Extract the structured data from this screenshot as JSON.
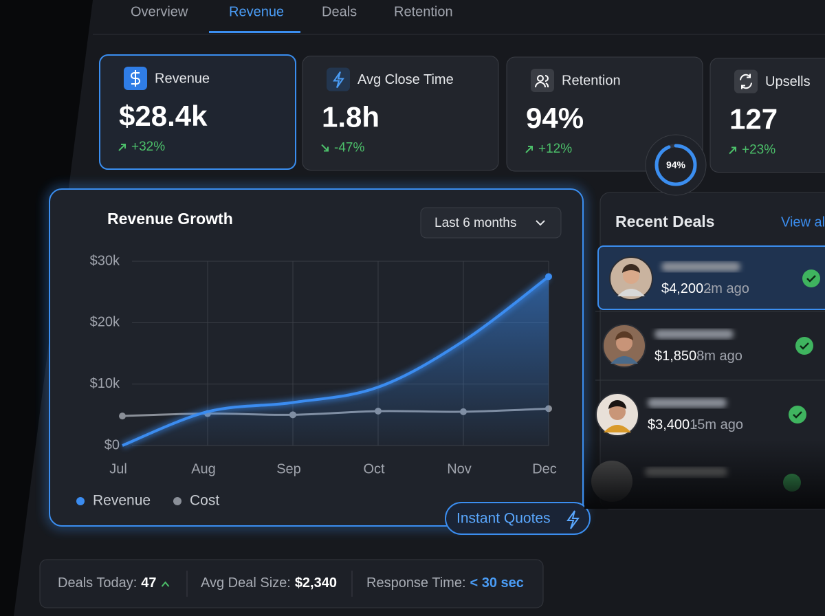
{
  "tabs": [
    "Overview",
    "Revenue",
    "Deals",
    "Retention"
  ],
  "kpis": [
    {
      "label": "Revenue",
      "value": "$28.4k",
      "change": "+32%"
    },
    {
      "label": "Avg Close Time",
      "value": "1.8h",
      "change": "-47%"
    },
    {
      "label": "Retention",
      "value": "94%",
      "change": "+12%",
      "ring": {
        "value": 94,
        "label": "94%"
      }
    },
    {
      "label": "Upsells",
      "value": "127",
      "change": "+23%"
    }
  ],
  "chart_data": {
    "type": "line",
    "title": "Revenue Growth",
    "period": "Last 6 months",
    "categories": [
      "Jul",
      "Aug",
      "Sep",
      "Oct",
      "Nov",
      "Dec"
    ],
    "series": [
      {
        "name": "Revenue",
        "color": "#3b8cf0",
        "values": [
          0,
          5500,
          7000,
          9500,
          17000,
          27500
        ]
      },
      {
        "name": "Cost",
        "color": "#8a8f98",
        "values": [
          4800,
          5200,
          5000,
          5600,
          5500,
          6000
        ]
      }
    ],
    "ylim": [
      0,
      30000
    ],
    "yticks": [
      {
        "value": 0,
        "label": "$0"
      },
      {
        "value": 10000,
        "label": "$10k"
      },
      {
        "value": 20000,
        "label": "$20k"
      },
      {
        "value": 30000,
        "label": "$30k"
      }
    ],
    "grid": true
  },
  "button": "Instant Quotes",
  "recent_deals": {
    "title": "Recent Deals",
    "link": "View all",
    "rows": [
      {
        "amount": "$4,200",
        "time": "2m ago"
      },
      {
        "amount": "$1,850",
        "time": "8m ago"
      },
      {
        "amount": "$3,400",
        "time": "15m ago"
      }
    ]
  },
  "footer": [
    {
      "label": "Deals Today:",
      "value": "47"
    },
    {
      "label": "Avg Deal Size:",
      "value": "$2,340"
    },
    {
      "label": "Response Time:",
      "value": "< 30 sec"
    }
  ]
}
